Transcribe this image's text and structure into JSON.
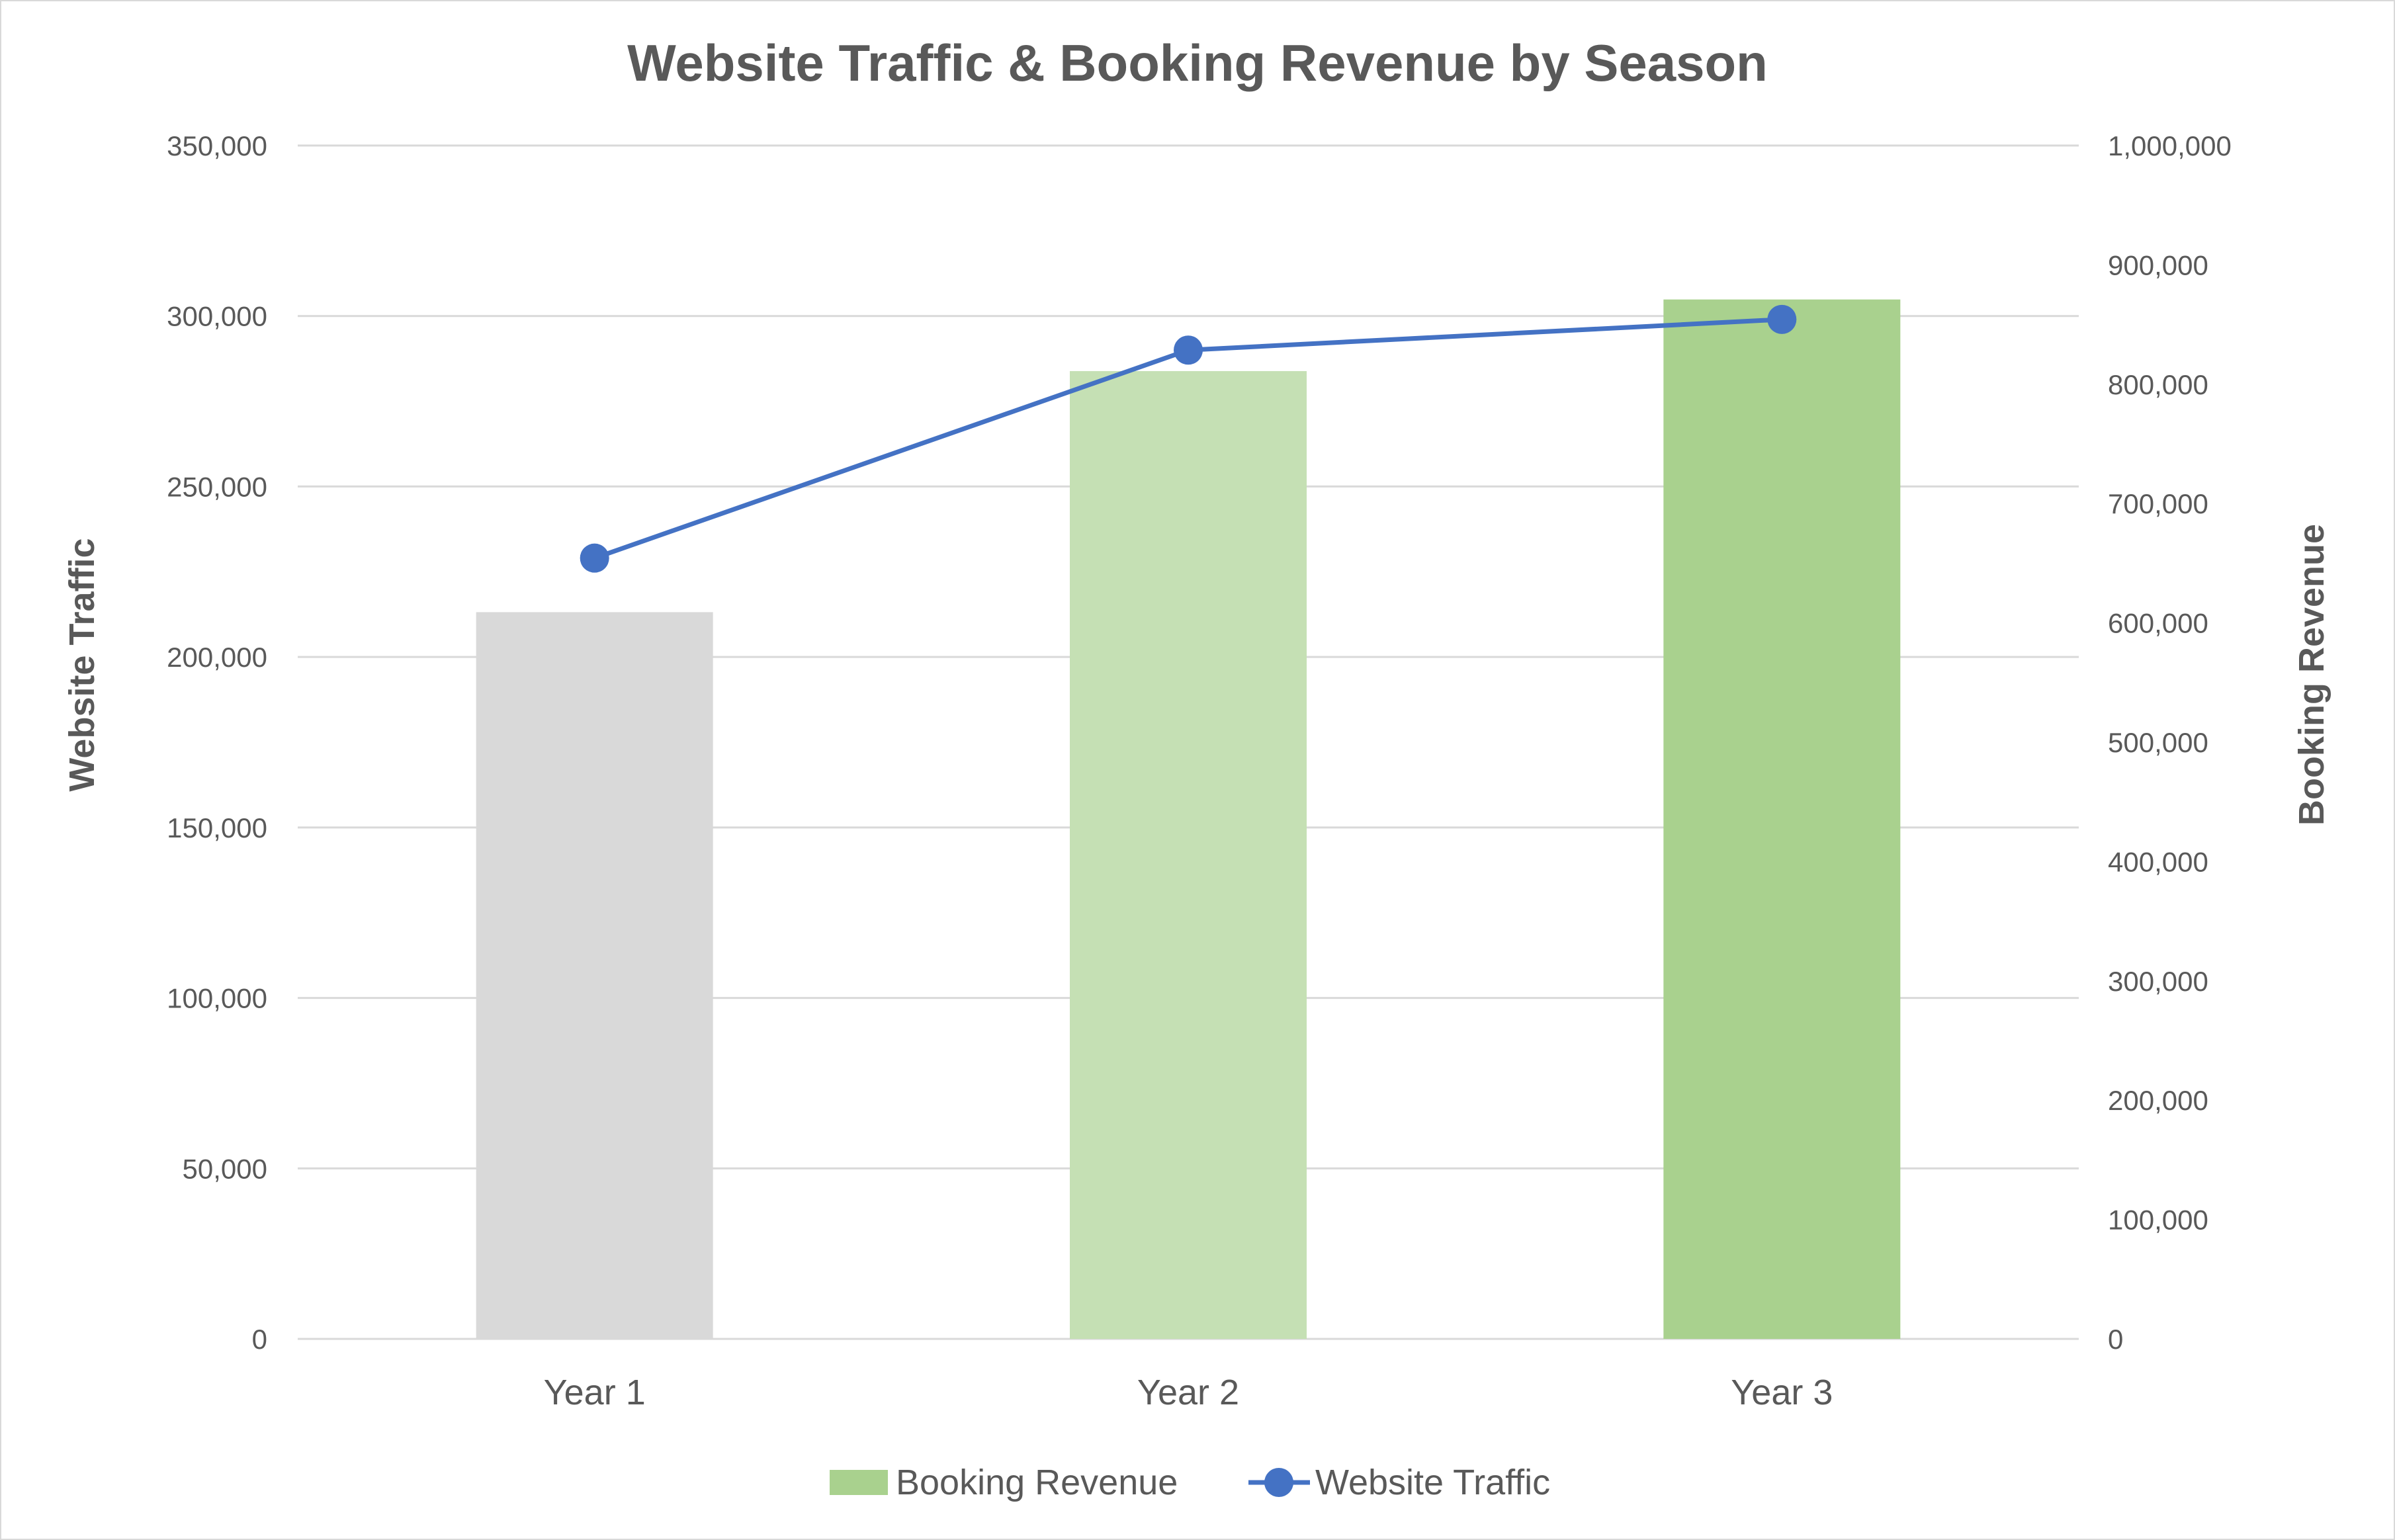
{
  "chart_data": {
    "type": "bar",
    "title": "Website Traffic & Booking Revenue by Season",
    "categories": [
      "Year 1",
      "Year 2",
      "Year 3"
    ],
    "series": [
      {
        "name": "Booking Revenue",
        "type": "bar",
        "axis": "right",
        "values": [
          609000,
          811000,
          871000
        ],
        "point_colors": [
          "#d9d9d9",
          "#c5e0b4",
          "#a9d18e"
        ],
        "legend_color": "#a9d18e"
      },
      {
        "name": "Website Traffic",
        "type": "line",
        "axis": "left",
        "values": [
          229000,
          290000,
          299000
        ],
        "color": "#4472c4"
      }
    ],
    "ylabel": "Website Traffic",
    "y2label": "Booking Revenue",
    "ylim": [
      0,
      350000
    ],
    "y2lim": [
      0,
      1000000
    ],
    "yticks": [
      "0",
      "50,000",
      "100,000",
      "150,000",
      "200,000",
      "250,000",
      "300,000",
      "350,000"
    ],
    "y2ticks": [
      "0",
      "100,000",
      "200,000",
      "300,000",
      "400,000",
      "500,000",
      "600,000",
      "700,000",
      "800,000",
      "900,000",
      "1,000,000"
    ],
    "grid": true,
    "gridline_color": "#d9d9d9",
    "legend_position": "bottom",
    "text_color": "#595959"
  }
}
